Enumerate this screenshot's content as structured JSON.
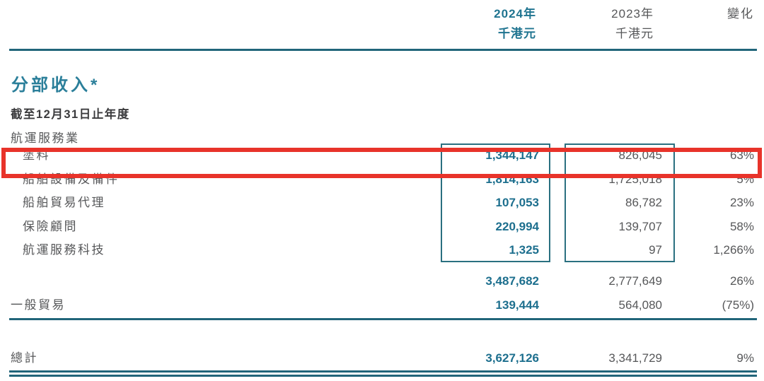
{
  "colors": {
    "teal_accent": "#1f7a96",
    "teal_line": "#21657a",
    "frame_border": "#2a7080",
    "highlight_red": "#e8332a",
    "gray_text": "#565759"
  },
  "header": {
    "col_2024_year": "2024年",
    "col_2024_unit": "千港元",
    "col_2023_year": "2023年",
    "col_2023_unit": "千港元",
    "change_label": "變化"
  },
  "section": {
    "title": "分部收入*",
    "subtitle": "截至12月31日止年度",
    "group_label": "航運服務業"
  },
  "table": {
    "rows": [
      {
        "label": "塗料",
        "v2024": "1,344,147",
        "v2023": "826,045",
        "change": "63%",
        "highlighted": true
      },
      {
        "label": "船舶設備及備件",
        "v2024": "1,814,163",
        "v2023": "1,725,018",
        "change": "5%",
        "highlighted": false
      },
      {
        "label": "船舶貿易代理",
        "v2024": "107,053",
        "v2023": "86,782",
        "change": "23%",
        "highlighted": false
      },
      {
        "label": "保險顧問",
        "v2024": "220,994",
        "v2023": "139,707",
        "change": "58%",
        "highlighted": false
      },
      {
        "label": "航運服務科技",
        "v2024": "1,325",
        "v2023": "97",
        "change": "1,266%",
        "highlighted": false
      }
    ],
    "subtotal": {
      "v2024": "3,487,682",
      "v2023": "2,777,649",
      "change": "26%"
    },
    "general_trade": {
      "label": "一般貿易",
      "v2024": "139,444",
      "v2023": "564,080",
      "change": "(75%)"
    },
    "total": {
      "label": "總計",
      "v2024": "3,627,126",
      "v2023": "3,341,729",
      "change": "9%"
    }
  }
}
